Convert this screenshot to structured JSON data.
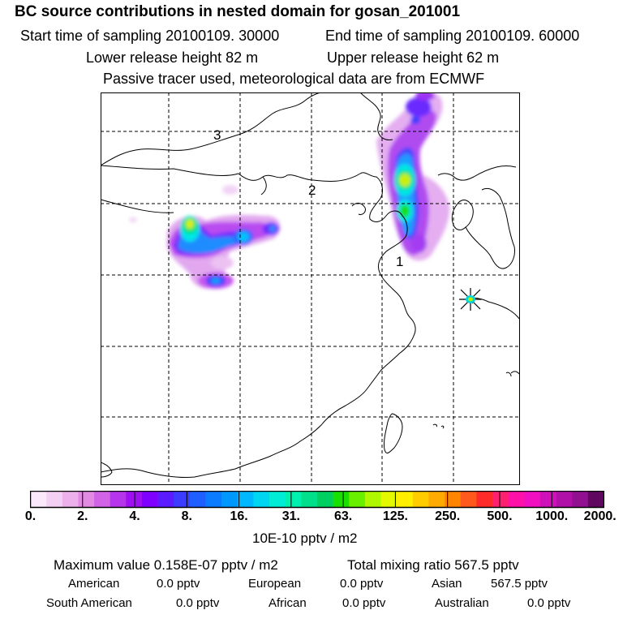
{
  "header": {
    "title": "BC  source contributions in nested domain for gosan_201001",
    "start_label": "Start time of sampling 20100109. 30000",
    "end_label": "End time of sampling 20100109. 60000",
    "lower_height": "Lower release height   82 m",
    "upper_height": "Upper release height   62 m",
    "tracer_note": "Passive tracer used, meteorological data are from ECMWF"
  },
  "map": {
    "region_labels": [
      "3",
      "2",
      "1"
    ],
    "receptor_marker": "star-burst-icon"
  },
  "colorbar": {
    "colors": [
      "#fbe9fb",
      "#f5d0f5",
      "#edb0ed",
      "#e38be3",
      "#d063e6",
      "#b635ec",
      "#9e10f2",
      "#8000ff",
      "#5a1cff",
      "#3c3cff",
      "#1f5fff",
      "#0b7cff",
      "#0097ff",
      "#00b8ff",
      "#00d6f2",
      "#00ecd6",
      "#00f0b0",
      "#00e08a",
      "#00d060",
      "#18e000",
      "#68f000",
      "#b0f800",
      "#e4f800",
      "#ffee00",
      "#ffcc00",
      "#ffaa00",
      "#ff8400",
      "#ff5a1c",
      "#ff2a2a",
      "#ff2070",
      "#ff10a8",
      "#f010c0",
      "#d010b8",
      "#b010a8",
      "#901090",
      "#600860"
    ],
    "ticks": [
      "0.",
      "2.",
      "4.",
      "8.",
      "16.",
      "31.",
      "63.",
      "125.",
      "250.",
      "500.",
      "1000.",
      "2000."
    ],
    "unit": "10E-10 pptv / m2"
  },
  "footer": {
    "max_value": "Maximum value  0.158E-07 pptv / m2",
    "total_mixing": "Total mixing ratio      567.5 pptv",
    "contrib": [
      {
        "label": "American",
        "value": "0.0 pptv"
      },
      {
        "label": "European",
        "value": "0.0 pptv"
      },
      {
        "label": "Asian",
        "value": "567.5 pptv"
      },
      {
        "label": "South American",
        "value": "0.0 pptv"
      },
      {
        "label": "African",
        "value": "0.0 pptv"
      },
      {
        "label": "Australian",
        "value": "0.0 pptv"
      }
    ]
  }
}
